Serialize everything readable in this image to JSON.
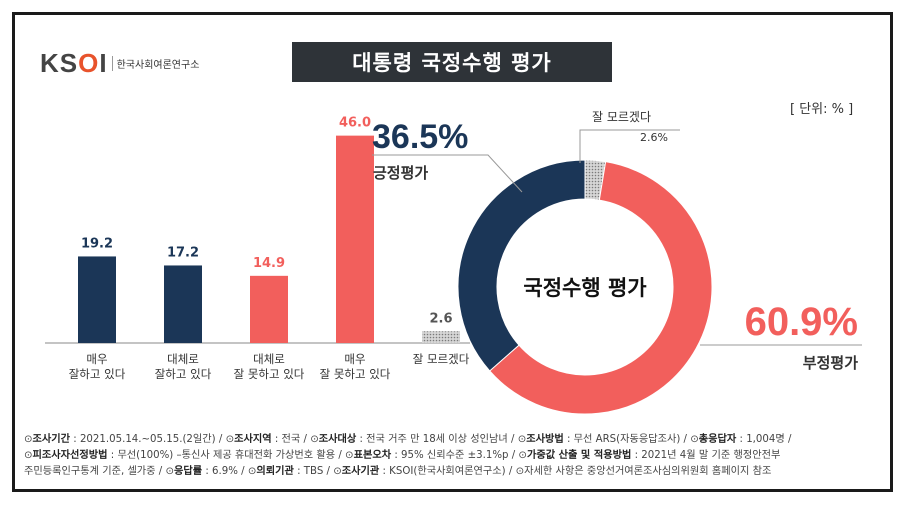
{
  "header": {
    "logo_text": "KSOI",
    "logo_subtitle": "한국사회여론연구소",
    "title": "대통령 국정수행 평가",
    "unit": "[ 단위: % ]"
  },
  "chart_data": [
    {
      "type": "bar",
      "categories": [
        "매우\n잘하고 있다",
        "대체로\n잘하고 있다",
        "대체로\n잘 못하고 있다",
        "매우\n잘 못하고 있다",
        "잘 모르겠다"
      ],
      "values": [
        19.2,
        17.2,
        14.9,
        46.0,
        2.6
      ],
      "value_labels": [
        "19.2",
        "17.2",
        "14.9",
        "46.0",
        "2.6"
      ],
      "colors": [
        "#1b3657",
        "#1b3657",
        "#f25f5c",
        "#f25f5c",
        "#b5b5b5"
      ],
      "ylim": [
        0,
        50
      ]
    },
    {
      "type": "pie",
      "center_label": "국정수행 평가",
      "slices": [
        {
          "name": "긍정평가",
          "value": 36.5,
          "label": "36.5%",
          "color": "#1b3657"
        },
        {
          "name": "부정평가",
          "value": 60.9,
          "label": "60.9%",
          "color": "#f25f5c"
        },
        {
          "name": "잘 모르겠다",
          "value": 2.6,
          "label": "2.6%",
          "color": "#c8c8c8"
        }
      ]
    }
  ],
  "footnote": {
    "lines": [
      [
        {
          "k": "조사기간",
          "v": " : 2021.05.14.~05.15.(2일간) / "
        },
        {
          "k": "조사지역",
          "v": " : 전국 / "
        },
        {
          "k": "조사대상",
          "v": " : 전국 거주 만 18세 이상 성인남녀 / "
        },
        {
          "k": "조사방법",
          "v": " : 무선 ARS(자동응답조사) / "
        },
        {
          "k": "총응답자",
          "v": " : 1,004명 /"
        }
      ],
      [
        {
          "k": "피조사자선정방법",
          "v": " : 무선(100%) –통신사 제공 휴대전화 가상번호 활용 / "
        },
        {
          "k": "표본오차",
          "v": " : 95% 신뢰수준 ±3.1%p / "
        },
        {
          "k": "가중값 산출 및 적용방법",
          "v": " : 2021년 4월 말 기준 행정안전부"
        }
      ],
      [
        {
          "k": "",
          "v": "주민등록인구통계 기준, 셀가중 / "
        },
        {
          "k": "응답률",
          "v": " : 6.9% / "
        },
        {
          "k": "의뢰기관",
          "v": " : TBS / "
        },
        {
          "k": "조사기관",
          "v": " : KSOI(한국사회여론연구소) / "
        },
        {
          "k": "",
          "v": "자세한 사항은 중앙선거여론조사심의위원회 홈페이지 참조"
        }
      ]
    ]
  }
}
